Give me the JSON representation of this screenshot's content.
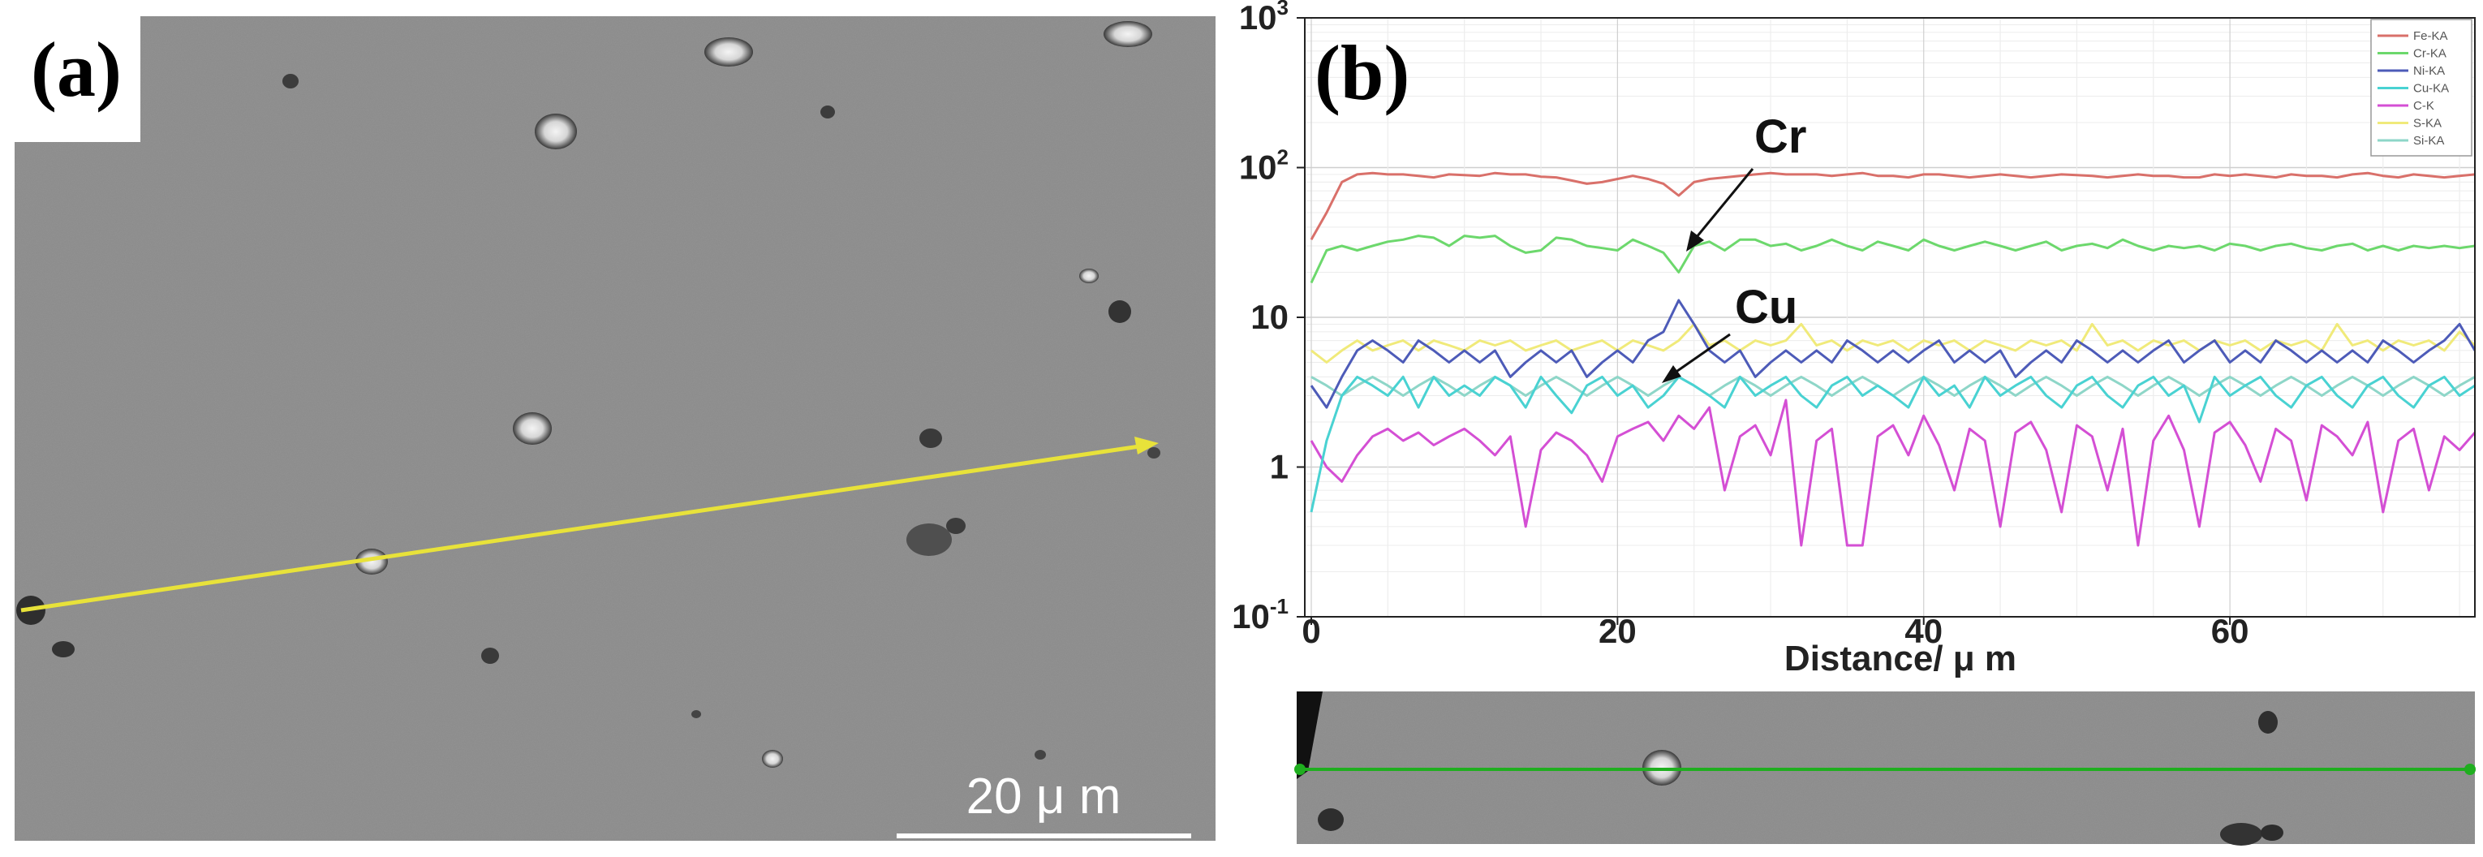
{
  "panel_a": {
    "label": "(a)",
    "scale_bar_label": "20 μ m",
    "line_scan_color": "#e8e23a"
  },
  "panel_b": {
    "label": "(b)",
    "annotations": [
      {
        "text": "Cr"
      },
      {
        "text": "Cu"
      }
    ],
    "inset_line_color": "#1fae1f"
  },
  "chart_data": {
    "type": "line",
    "title": "",
    "xlabel": "Distance/ μ m",
    "ylabel": "",
    "yscale": "log",
    "xlim": [
      0,
      76
    ],
    "ylim": [
      0.1,
      1000
    ],
    "x_ticks": [
      0,
      20,
      40,
      60
    ],
    "y_ticks": [
      {
        "value": 1000,
        "base": "10",
        "exp": "3"
      },
      {
        "value": 100,
        "base": "10",
        "exp": "2"
      },
      {
        "value": 10,
        "base": "10",
        "exp": ""
      },
      {
        "value": 1,
        "base": "1",
        "exp": ""
      },
      {
        "value": 0.1,
        "base": "10",
        "exp": "-1"
      }
    ],
    "legend_position": "top-right",
    "x_step": 1,
    "series": [
      {
        "name": "Fe-KA",
        "color": "#d9706a",
        "values": [
          33,
          50,
          80,
          90,
          92,
          90,
          90,
          88,
          86,
          90,
          89,
          88,
          92,
          90,
          90,
          87,
          86,
          82,
          78,
          80,
          84,
          88,
          84,
          78,
          65,
          80,
          84,
          86,
          88,
          90,
          92,
          90,
          90,
          90,
          88,
          90,
          92,
          88,
          88,
          86,
          90,
          90,
          88,
          86,
          88,
          90,
          88,
          86,
          88,
          90,
          89,
          88,
          86,
          88,
          90,
          88,
          88,
          86,
          86,
          90,
          88,
          90,
          88,
          86,
          90,
          88,
          88,
          86,
          90,
          92,
          88,
          86,
          90,
          88,
          86,
          88,
          90
        ]
      },
      {
        "name": "Cr-KA",
        "color": "#6cd86c",
        "values": [
          17,
          28,
          30,
          28,
          30,
          32,
          33,
          35,
          34,
          30,
          35,
          34,
          35,
          30,
          27,
          28,
          34,
          33,
          30,
          29,
          28,
          33,
          30,
          27,
          20,
          30,
          32,
          28,
          33,
          33,
          30,
          31,
          28,
          30,
          33,
          30,
          28,
          32,
          30,
          28,
          33,
          30,
          28,
          30,
          32,
          30,
          28,
          30,
          32,
          28,
          30,
          31,
          29,
          33,
          30,
          28,
          30,
          29,
          30,
          28,
          31,
          30,
          28,
          30,
          31,
          29,
          28,
          30,
          31,
          28,
          30,
          28,
          30,
          29,
          30,
          29,
          30
        ]
      },
      {
        "name": "Ni-KA",
        "color": "#4d5bb8",
        "values": [
          3.5,
          2.5,
          4,
          6,
          7,
          6,
          5,
          7,
          6,
          5,
          6,
          5,
          6,
          4,
          5,
          6,
          5,
          6,
          4,
          5,
          6,
          5,
          7,
          8,
          13,
          9,
          6,
          5,
          6,
          4,
          5,
          6,
          5,
          6,
          5,
          7,
          6,
          5,
          6,
          5,
          6,
          7,
          5,
          6,
          5,
          6,
          4,
          5,
          6,
          5,
          7,
          6,
          5,
          6,
          5,
          6,
          7,
          5,
          6,
          7,
          5,
          6,
          5,
          7,
          6,
          5,
          6,
          5,
          6,
          5,
          7,
          6,
          5,
          6,
          7,
          9,
          6
        ]
      },
      {
        "name": "Cu-KA",
        "color": "#49d2d2",
        "values": [
          0.5,
          1.5,
          3,
          4,
          3.5,
          3,
          4,
          2.5,
          4,
          3,
          3.5,
          3,
          4,
          3.5,
          2.5,
          4,
          3,
          2.3,
          3.5,
          4,
          3,
          3.5,
          2.5,
          3,
          4,
          3.5,
          3,
          2.5,
          4,
          3,
          3.5,
          4,
          3,
          2.5,
          3.5,
          4,
          3,
          3.5,
          3,
          2.5,
          4,
          3,
          3.5,
          2.5,
          4,
          3,
          3.5,
          4,
          3,
          2.5,
          3.5,
          4,
          3,
          2.5,
          3.5,
          4,
          3,
          3.5,
          2,
          4,
          3,
          3.5,
          4,
          3,
          2.5,
          3.5,
          4,
          3,
          2.5,
          3.5,
          4,
          3,
          2.5,
          3.5,
          4,
          3,
          3.5
        ]
      },
      {
        "name": "C-K",
        "color": "#d44fd4",
        "values": [
          1.5,
          1.0,
          0.8,
          1.2,
          1.6,
          1.8,
          1.5,
          1.7,
          1.4,
          1.6,
          1.8,
          1.5,
          1.2,
          1.6,
          0.4,
          1.3,
          1.7,
          1.5,
          1.2,
          0.8,
          1.6,
          1.8,
          2.0,
          1.5,
          2.2,
          1.8,
          2.5,
          0.7,
          1.6,
          1.9,
          1.2,
          2.8,
          0.3,
          1.5,
          1.8,
          0.3,
          0.3,
          1.6,
          1.9,
          1.2,
          2.2,
          1.4,
          0.7,
          1.8,
          1.5,
          0.4,
          1.7,
          2.0,
          1.3,
          0.5,
          1.9,
          1.6,
          0.7,
          1.8,
          0.3,
          1.5,
          2.2,
          1.3,
          0.4,
          1.7,
          2.0,
          1.4,
          0.8,
          1.8,
          1.5,
          0.6,
          1.9,
          1.6,
          1.2,
          2.0,
          0.5,
          1.5,
          1.8,
          0.7,
          1.6,
          1.3,
          1.7
        ]
      },
      {
        "name": "S-KA",
        "color": "#f0ea7a",
        "values": [
          6,
          5,
          6,
          7,
          6,
          6.5,
          7,
          6,
          7,
          6.5,
          6,
          7,
          6.5,
          7,
          6,
          6.5,
          7,
          6,
          6.5,
          7,
          6,
          7,
          6.5,
          6,
          7,
          9,
          6.5,
          7,
          6,
          7,
          6.5,
          7,
          9,
          6.5,
          7,
          6,
          7,
          6.5,
          7,
          6,
          7,
          6.5,
          7,
          6,
          7,
          6.5,
          6,
          7,
          6.5,
          7,
          6,
          9,
          6.5,
          7,
          6,
          7,
          6.5,
          7,
          6,
          7,
          6.5,
          7,
          6,
          7,
          6.5,
          7,
          6,
          9,
          6.5,
          7,
          6,
          7,
          6.5,
          7,
          6,
          8,
          6.5
        ]
      },
      {
        "name": "Si-KA",
        "color": "#8ed6c8",
        "values": [
          4,
          3.5,
          3,
          3.5,
          4,
          3.5,
          3,
          3.5,
          4,
          3.5,
          3,
          3.5,
          4,
          3.5,
          3,
          3.5,
          4,
          3.5,
          3,
          3.5,
          4,
          3.5,
          3,
          3.5,
          4,
          3.5,
          3,
          3.5,
          4,
          3.5,
          3,
          3.5,
          4,
          3.5,
          3,
          3.5,
          4,
          3.5,
          3,
          3.5,
          4,
          3.5,
          3,
          3.5,
          4,
          3.5,
          3,
          3.5,
          4,
          3.5,
          3,
          3.5,
          4,
          3.5,
          3,
          3.5,
          4,
          3.5,
          3,
          3.5,
          4,
          3.5,
          3,
          3.5,
          4,
          3.5,
          3,
          3.5,
          4,
          3.5,
          3,
          3.5,
          4,
          3.5,
          3,
          3.5,
          4
        ]
      }
    ]
  }
}
